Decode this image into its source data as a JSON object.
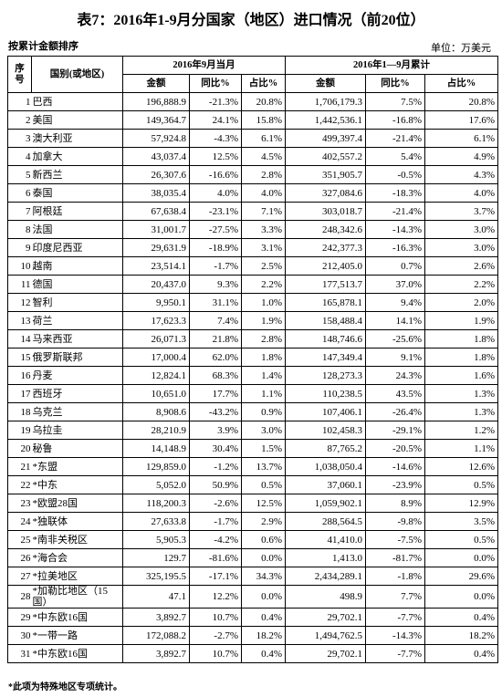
{
  "header": {
    "title": "表7：2016年1-9月分国家（地区）进口情况（前20位）",
    "sort_note": "按累计金额排序",
    "unit": "单位：万美元"
  },
  "table": {
    "columns": {
      "no": "序号",
      "name": "国别(或地区)",
      "group1": "2016年9月当月",
      "group2": "2016年1—9月累计",
      "sub": [
        "金额",
        "同比%",
        "占比%",
        "金额",
        "同比%",
        "占比%"
      ]
    },
    "rows": [
      [
        "1",
        "巴西",
        "196,888.9",
        "-21.3%",
        "20.8%",
        "1,706,179.3",
        "7.5%",
        "20.8%"
      ],
      [
        "2",
        "美国",
        "149,364.7",
        "24.1%",
        "15.8%",
        "1,442,536.1",
        "-16.8%",
        "17.6%"
      ],
      [
        "3",
        "澳大利亚",
        "57,924.8",
        "-4.3%",
        "6.1%",
        "499,397.4",
        "-21.4%",
        "6.1%"
      ],
      [
        "4",
        "加拿大",
        "43,037.4",
        "12.5%",
        "4.5%",
        "402,557.2",
        "5.4%",
        "4.9%"
      ],
      [
        "5",
        "新西兰",
        "26,307.6",
        "-16.6%",
        "2.8%",
        "351,905.7",
        "-0.5%",
        "4.3%"
      ],
      [
        "6",
        "泰国",
        "38,035.4",
        "4.0%",
        "4.0%",
        "327,084.6",
        "-18.3%",
        "4.0%"
      ],
      [
        "7",
        "阿根廷",
        "67,638.4",
        "-23.1%",
        "7.1%",
        "303,018.7",
        "-21.4%",
        "3.7%"
      ],
      [
        "8",
        "法国",
        "31,001.7",
        "-27.5%",
        "3.3%",
        "248,342.6",
        "-14.3%",
        "3.0%"
      ],
      [
        "9",
        "印度尼西亚",
        "29,631.9",
        "-18.9%",
        "3.1%",
        "242,377.3",
        "-16.3%",
        "3.0%"
      ],
      [
        "10",
        "越南",
        "23,514.1",
        "-1.7%",
        "2.5%",
        "212,405.0",
        "0.7%",
        "2.6%"
      ],
      [
        "11",
        "德国",
        "20,437.0",
        "9.3%",
        "2.2%",
        "177,513.7",
        "37.0%",
        "2.2%"
      ],
      [
        "12",
        "智利",
        "9,950.1",
        "31.1%",
        "1.0%",
        "165,878.1",
        "9.4%",
        "2.0%"
      ],
      [
        "13",
        "荷兰",
        "17,623.3",
        "7.4%",
        "1.9%",
        "158,488.4",
        "14.1%",
        "1.9%"
      ],
      [
        "14",
        "马来西亚",
        "26,071.3",
        "21.8%",
        "2.8%",
        "148,746.6",
        "-25.6%",
        "1.8%"
      ],
      [
        "15",
        "俄罗斯联邦",
        "17,000.4",
        "62.0%",
        "1.8%",
        "147,349.4",
        "9.1%",
        "1.8%"
      ],
      [
        "16",
        "丹麦",
        "12,824.1",
        "68.3%",
        "1.4%",
        "128,273.3",
        "24.3%",
        "1.6%"
      ],
      [
        "17",
        "西班牙",
        "10,651.0",
        "17.7%",
        "1.1%",
        "110,238.5",
        "43.5%",
        "1.3%"
      ],
      [
        "18",
        "乌克兰",
        "8,908.6",
        "-43.2%",
        "0.9%",
        "107,406.1",
        "-26.4%",
        "1.3%"
      ],
      [
        "19",
        "乌拉圭",
        "28,210.9",
        "3.9%",
        "3.0%",
        "102,458.3",
        "-29.1%",
        "1.2%"
      ],
      [
        "20",
        "秘鲁",
        "14,148.9",
        "30.4%",
        "1.5%",
        "87,765.2",
        "-20.5%",
        "1.1%"
      ],
      [
        "21",
        "*东盟",
        "129,859.0",
        "-1.2%",
        "13.7%",
        "1,038,050.4",
        "-14.6%",
        "12.6%"
      ],
      [
        "22",
        "*中东",
        "5,052.0",
        "50.9%",
        "0.5%",
        "37,060.1",
        "-23.9%",
        "0.5%"
      ],
      [
        "23",
        "*欧盟28国",
        "118,200.3",
        "-2.6%",
        "12.5%",
        "1,059,902.1",
        "8.9%",
        "12.9%"
      ],
      [
        "24",
        "*独联体",
        "27,633.8",
        "-1.7%",
        "2.9%",
        "288,564.5",
        "-9.8%",
        "3.5%"
      ],
      [
        "25",
        "*南非关税区",
        "5,905.3",
        "-4.2%",
        "0.6%",
        "41,410.0",
        "-7.5%",
        "0.5%"
      ],
      [
        "26",
        "*海合会",
        "129.7",
        "-81.6%",
        "0.0%",
        "1,413.0",
        "-81.7%",
        "0.0%"
      ],
      [
        "27",
        "*拉美地区",
        "325,195.5",
        "-17.1%",
        "34.3%",
        "2,434,289.1",
        "-1.8%",
        "29.6%"
      ],
      [
        "28",
        "*加勒比地区（15国）",
        "47.1",
        "12.2%",
        "0.0%",
        "498.9",
        "7.7%",
        "0.0%"
      ],
      [
        "29",
        "*中东欧16国",
        "3,892.7",
        "10.7%",
        "0.4%",
        "29,702.1",
        "-7.7%",
        "0.4%"
      ],
      [
        "30",
        "*一带一路",
        "172,088.2",
        "-2.7%",
        "18.2%",
        "1,494,762.5",
        "-14.3%",
        "18.2%"
      ],
      [
        "31",
        "*中东欧16国",
        "3,892.7",
        "10.7%",
        "0.4%",
        "29,702.1",
        "-7.7%",
        "0.4%"
      ]
    ]
  },
  "footer": {
    "note": "*此项为特殊地区专项统计。"
  }
}
